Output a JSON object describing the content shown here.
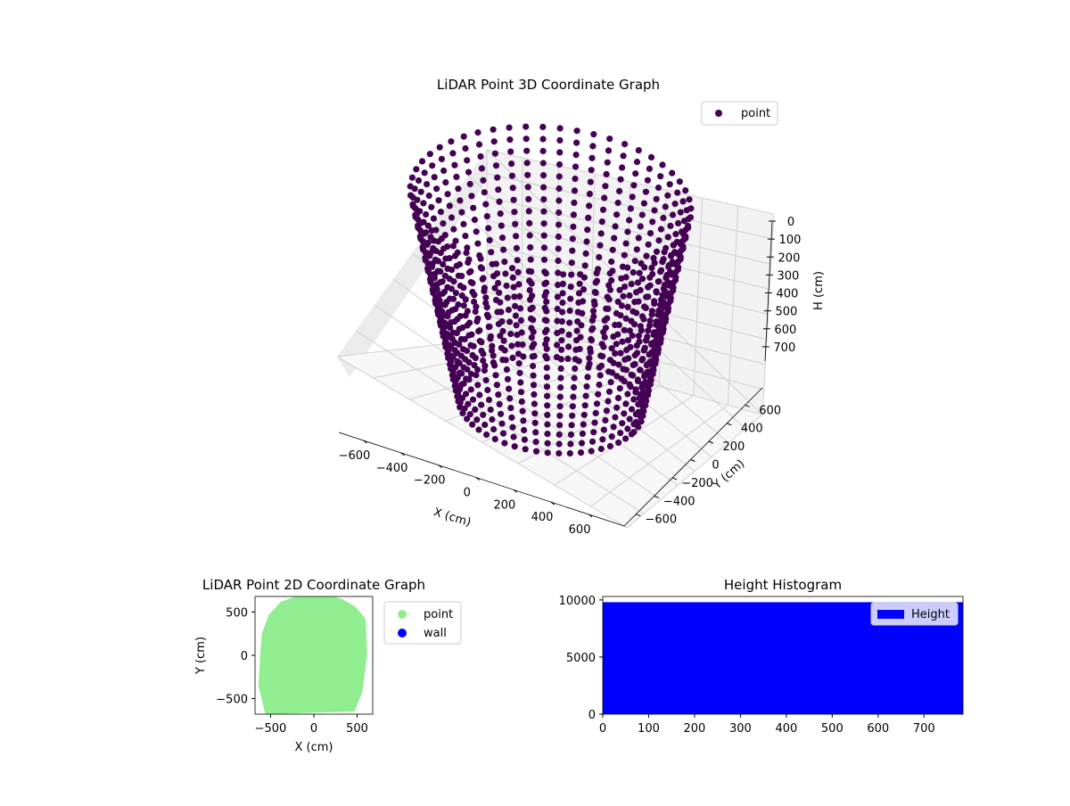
{
  "chart_data": [
    {
      "type": "scatter3d",
      "title": "LiDAR Point 3D Coordinate Graph",
      "xlabel": "X (cm)",
      "ylabel": "Y (cm)",
      "zlabel": "H (cm)",
      "xlim": [
        -700,
        700
      ],
      "ylim": [
        -700,
        700
      ],
      "zlim": [
        0,
        780
      ],
      "z_inverted": true,
      "xticks": [
        "−600",
        "−400",
        "−200",
        "0",
        "200",
        "400",
        "600"
      ],
      "yticks": [
        "−600",
        "−400",
        "−200",
        "0",
        "200",
        "400",
        "600"
      ],
      "zticks": [
        "0",
        "100",
        "200",
        "300",
        "400",
        "500",
        "600",
        "700"
      ],
      "legend": [
        {
          "label": "point",
          "color": "#440154"
        }
      ],
      "legend_position": "top-right",
      "grid": true,
      "series": [
        {
          "name": "point",
          "color": "#440154",
          "description_points": "dense ring of LiDAR scan columns, radius about 650, heights 0 to 780"
        }
      ]
    },
    {
      "type": "scatter",
      "title": "LiDAR Point 2D Coordinate Graph",
      "xlabel": "X (cm)",
      "ylabel": "Y (cm)",
      "xlim": [
        -680,
        680
      ],
      "ylim": [
        -680,
        680
      ],
      "xticks": [
        "−500",
        "0",
        "500"
      ],
      "yticks": [
        "−500",
        "0",
        "500"
      ],
      "legend": [
        {
          "label": "point",
          "color": "#90ee90"
        },
        {
          "label": "wall",
          "color": "#0000ff"
        }
      ],
      "legend_position": "outside-right",
      "grid": false
    },
    {
      "type": "bar",
      "title": "Height Histogram",
      "xlim": [
        0,
        785
      ],
      "ylim": [
        0,
        10300
      ],
      "xticks": [
        "0",
        "100",
        "200",
        "300",
        "400",
        "500",
        "600",
        "700"
      ],
      "yticks": [
        "0",
        "5000",
        "10000"
      ],
      "series": [
        {
          "name": "Height",
          "color": "#0000ff",
          "bin_width": 1,
          "value": 9800,
          "x_range": [
            0,
            785
          ]
        }
      ],
      "legend": [
        {
          "label": "Height",
          "color": "#0000ff"
        }
      ],
      "legend_position": "top-right",
      "grid": false
    }
  ]
}
